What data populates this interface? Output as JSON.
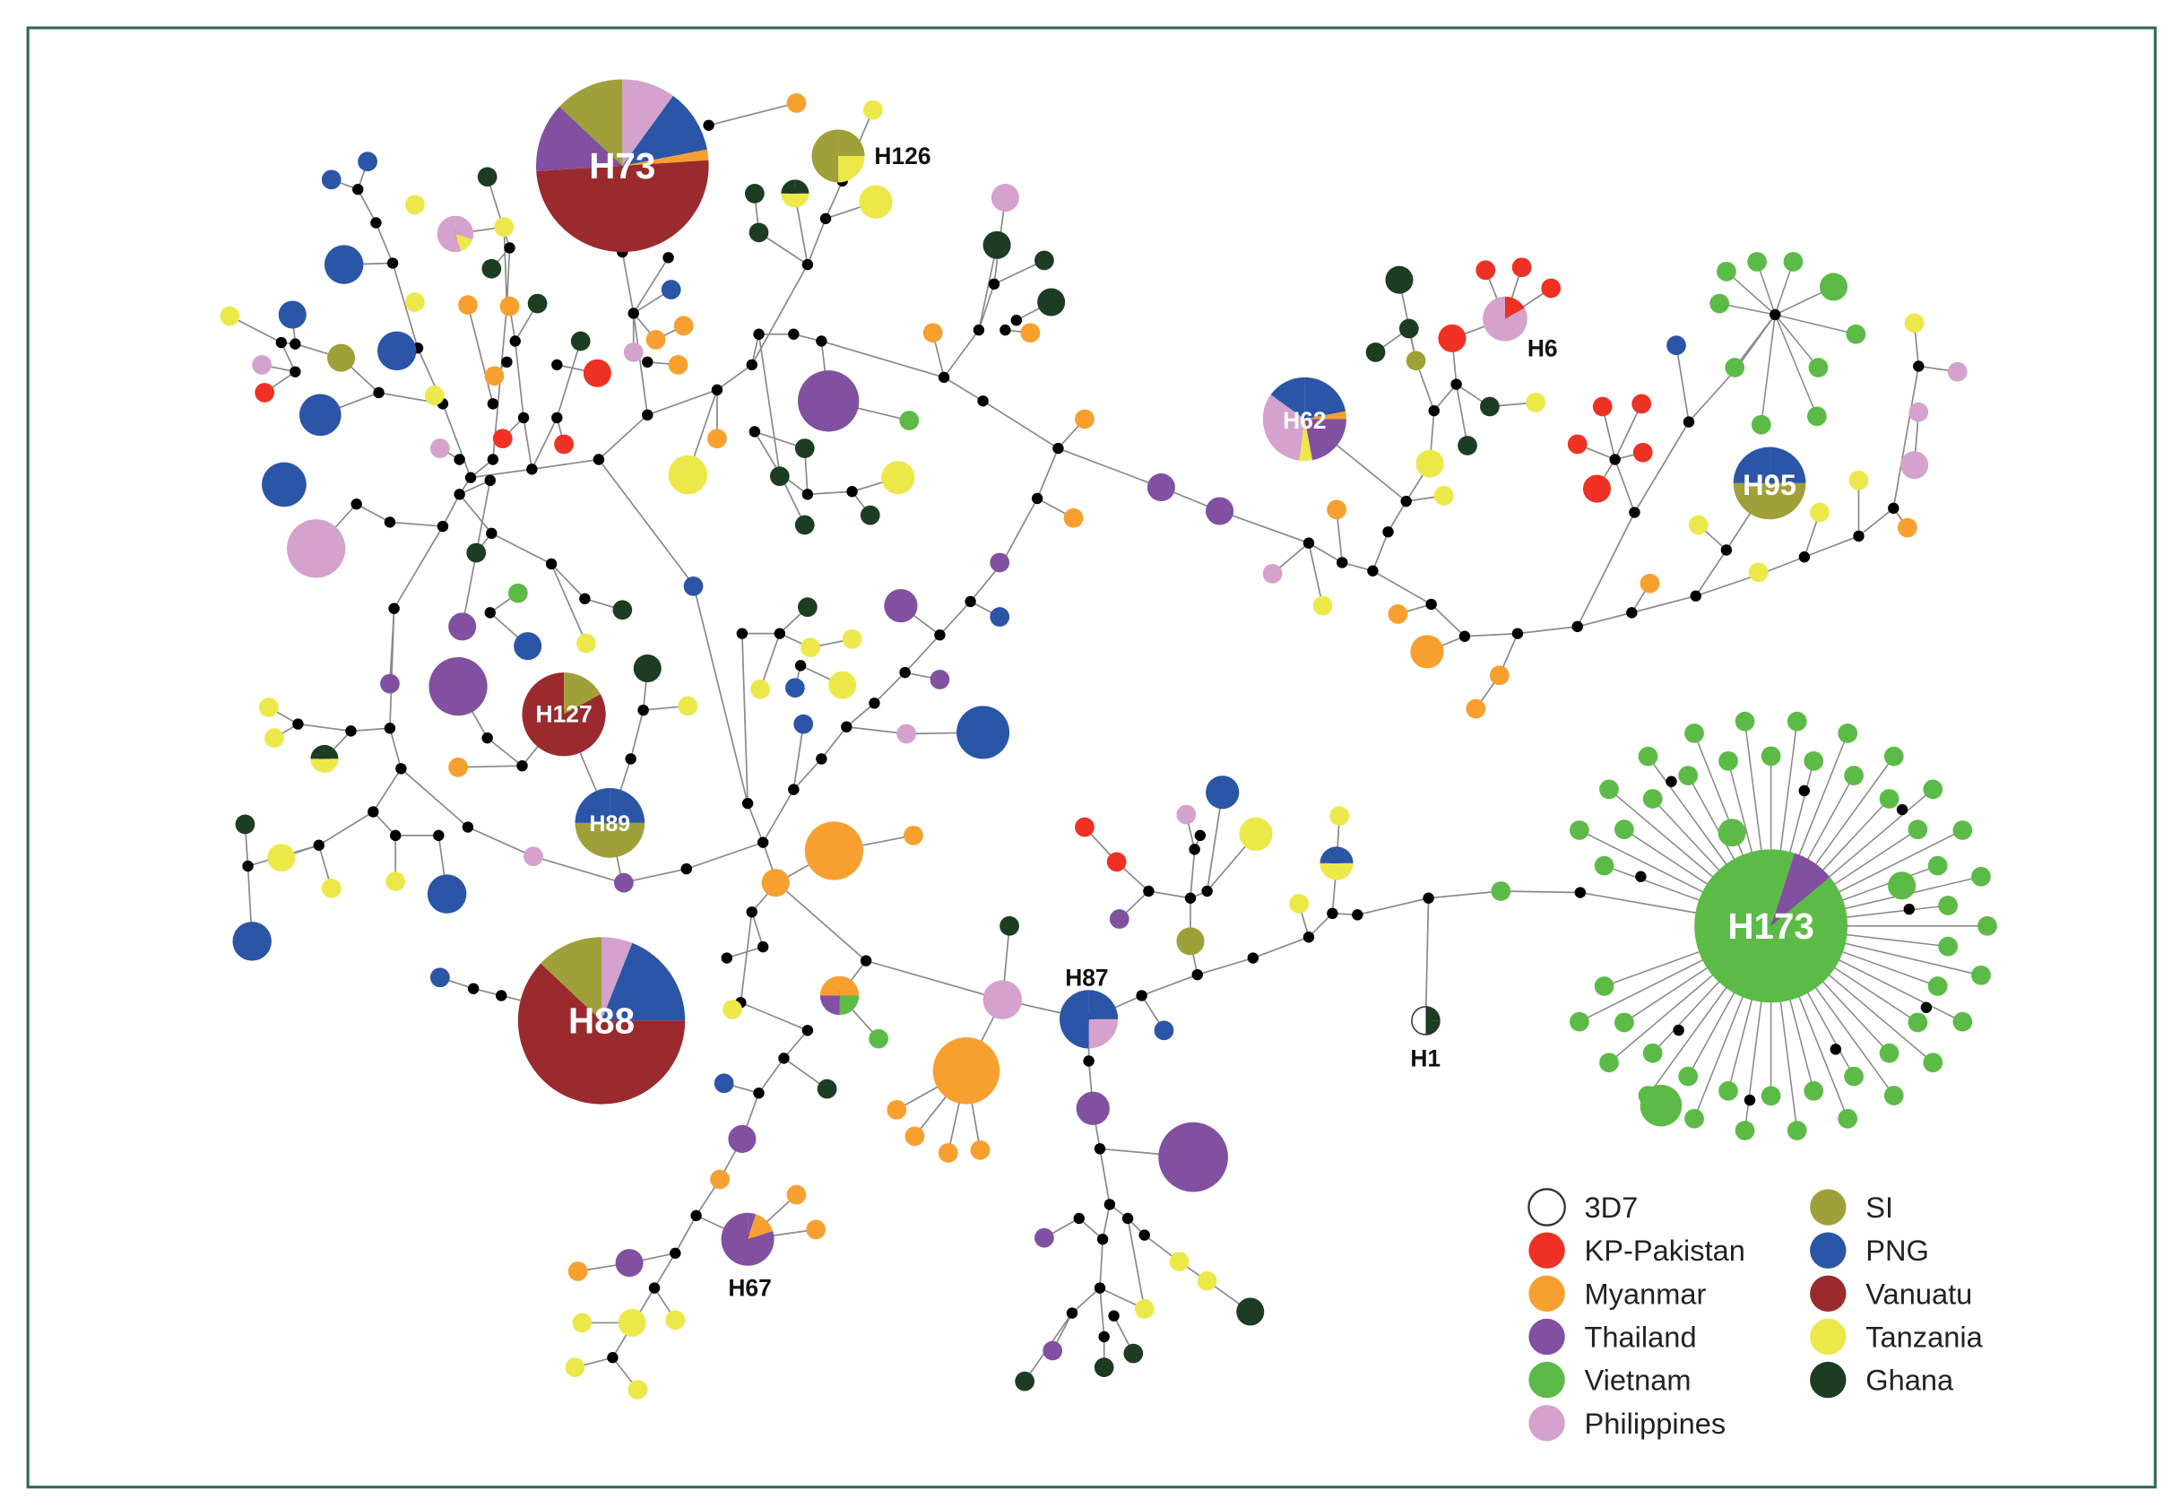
{
  "colors": {
    "w": "#ffffff",
    "r": "#ee3124",
    "o": "#f7a030",
    "p": "#8250a0",
    "g": "#5cbb46",
    "l": "#d4a2cc",
    "s": "#a0a03a",
    "b": "#2b55a6",
    "v": "#9b2a2e",
    "y": "#ece84a",
    "k": "#1d3d22",
    "n": "#000000",
    "frame": "#2f6a4a",
    "edge": "#8a8a8a"
  },
  "haplotypes": {
    "H73": "H73",
    "H88": "H88",
    "H173": "H173",
    "H95": "H95",
    "H62": "H62",
    "H127": "H127",
    "H89": "H89",
    "H126": "H126",
    "H6": "H6",
    "H87": "H87",
    "H67": "H67",
    "H1": "H1"
  },
  "legend": [
    {
      "label": "3D7",
      "key": "w"
    },
    {
      "label": "KP-Pakistan",
      "key": "r"
    },
    {
      "label": "Myanmar",
      "key": "o"
    },
    {
      "label": "Thailand",
      "key": "p"
    },
    {
      "label": "Vietnam",
      "key": "g"
    },
    {
      "label": "Philippines",
      "key": "l"
    },
    {
      "label": "SI",
      "key": "s"
    },
    {
      "label": "PNG",
      "key": "b"
    },
    {
      "label": "Vanuatu",
      "key": "v"
    },
    {
      "label": "Tanzania",
      "key": "y"
    },
    {
      "label": "Ghana",
      "key": "k"
    }
  ]
}
